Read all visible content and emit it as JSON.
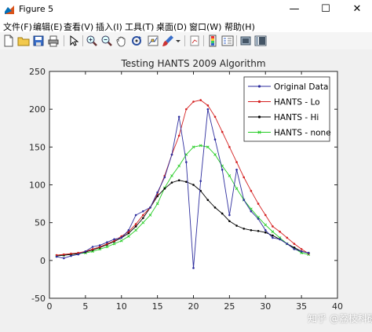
{
  "window": {
    "title": "Figure 5",
    "minimize": "—",
    "maximize": "☐",
    "close": "✕"
  },
  "menu": [
    {
      "id": "file",
      "label": "文件(F)"
    },
    {
      "id": "edit",
      "label": "编辑(E)"
    },
    {
      "id": "view",
      "label": "查看(V)"
    },
    {
      "id": "insert",
      "label": "插入(I)"
    },
    {
      "id": "tools",
      "label": "工具(T)"
    },
    {
      "id": "desktop",
      "label": "桌面(D)"
    },
    {
      "id": "window",
      "label": "窗口(W)"
    },
    {
      "id": "help",
      "label": "帮助(H)"
    }
  ],
  "toolbar_icons": [
    "new-figure-icon",
    "open-file-icon",
    "save-icon",
    "print-icon",
    "pointer-icon",
    "zoom-in-icon",
    "zoom-out-icon",
    "pan-icon",
    "rotate-3d-icon",
    "data-cursor-icon",
    "brush-icon",
    "dropdown-arrow-icon",
    "link-plot-icon",
    "insert-colorbar-icon",
    "insert-legend-icon",
    "hide-plot-tools-icon",
    "show-plot-tools-icon"
  ],
  "watermark": "知乎 @荔枝科研社",
  "chart_data": {
    "type": "line",
    "title": "Testing HANTS 2009 Algorithm",
    "xlabel": "",
    "ylabel": "",
    "xlim": [
      0,
      40
    ],
    "ylim": [
      -50,
      250
    ],
    "xticks": [
      0,
      5,
      10,
      15,
      20,
      25,
      30,
      35,
      40
    ],
    "yticks": [
      -50,
      0,
      50,
      100,
      150,
      200,
      250
    ],
    "grid": false,
    "legend_position": "top-right",
    "x": [
      1,
      2,
      3,
      4,
      5,
      6,
      7,
      8,
      9,
      10,
      11,
      12,
      13,
      14,
      15,
      16,
      17,
      18,
      19,
      20,
      21,
      22,
      23,
      24,
      25,
      26,
      27,
      28,
      29,
      30,
      31,
      32,
      33,
      34,
      35,
      36
    ],
    "series": [
      {
        "name": "Original Data",
        "color": "#2e2e9e",
        "marker": "dot",
        "values": [
          5,
          3,
          6,
          8,
          12,
          18,
          20,
          24,
          28,
          30,
          40,
          60,
          65,
          70,
          90,
          110,
          140,
          190,
          130,
          -10,
          105,
          200,
          160,
          120,
          60,
          120,
          80,
          65,
          55,
          40,
          30,
          28,
          22,
          15,
          12,
          10
        ]
      },
      {
        "name": "HANTS - Lo",
        "color": "#d42020",
        "marker": "dot",
        "values": [
          7,
          8,
          9,
          10,
          12,
          15,
          18,
          22,
          26,
          32,
          38,
          48,
          60,
          70,
          88,
          112,
          140,
          165,
          200,
          210,
          212,
          205,
          190,
          170,
          150,
          130,
          110,
          92,
          75,
          60,
          45,
          38,
          30,
          22,
          15,
          9
        ]
      },
      {
        "name": "HANTS - Hi",
        "color": "#000000",
        "marker": "dot",
        "values": [
          6,
          7,
          8,
          9,
          11,
          14,
          17,
          21,
          25,
          30,
          36,
          45,
          56,
          70,
          85,
          95,
          103,
          106,
          104,
          100,
          92,
          80,
          70,
          62,
          52,
          46,
          42,
          40,
          39,
          37,
          33,
          28,
          22,
          17,
          12,
          10
        ]
      },
      {
        "name": "HANTS - none",
        "color": "#22cc22",
        "marker": "x",
        "values": [
          6,
          7,
          8,
          9,
          10,
          12,
          15,
          18,
          22,
          26,
          32,
          40,
          50,
          60,
          75,
          96,
          112,
          125,
          140,
          150,
          152,
          150,
          140,
          125,
          112,
          95,
          80,
          68,
          57,
          47,
          38,
          30,
          22,
          16,
          10,
          8
        ]
      }
    ]
  }
}
